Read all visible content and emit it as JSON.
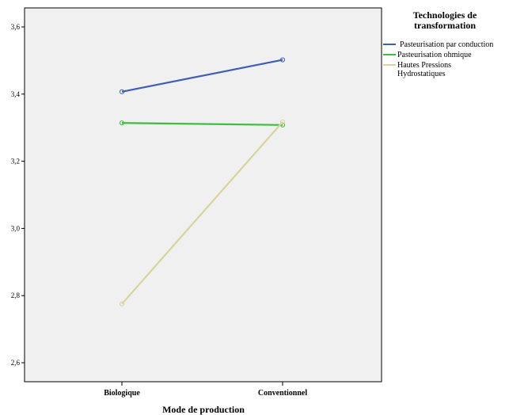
{
  "chart_data": {
    "type": "line",
    "categories": [
      "Biologique",
      "Conventionnel"
    ],
    "xlabel": "Mode de production",
    "ylabel": "",
    "ylim": [
      2.55,
      3.7
    ],
    "yticks": [
      "2,6",
      "2,8",
      "3,0",
      "3,2",
      "3,4",
      "3,6"
    ],
    "ytick_values": [
      2.6,
      2.8,
      3.0,
      3.2,
      3.4,
      3.6
    ],
    "grid": false,
    "legend": {
      "title": [
        "Technologies de",
        "transformation"
      ],
      "placement": "right"
    },
    "series": [
      {
        "name": "Pasteurisation par conduction",
        "name_lines": [
          "Pasteurisation par conduction"
        ],
        "color": "#3f5fb3",
        "values": [
          3.407,
          3.502
        ]
      },
      {
        "name": "Pasteurisation ohmique",
        "name_lines": [
          "Pasteurisation ohmique"
        ],
        "color": "#3cbf3c",
        "values": [
          3.314,
          3.308
        ]
      },
      {
        "name": "Hautes Pressions Hydrostatiques",
        "name_lines": [
          "Hautes Pressions",
          "Hydrostatiques"
        ],
        "color": "#d9d49c",
        "values": [
          2.775,
          3.317
        ]
      }
    ],
    "plot_background": "#f0f0f0"
  }
}
